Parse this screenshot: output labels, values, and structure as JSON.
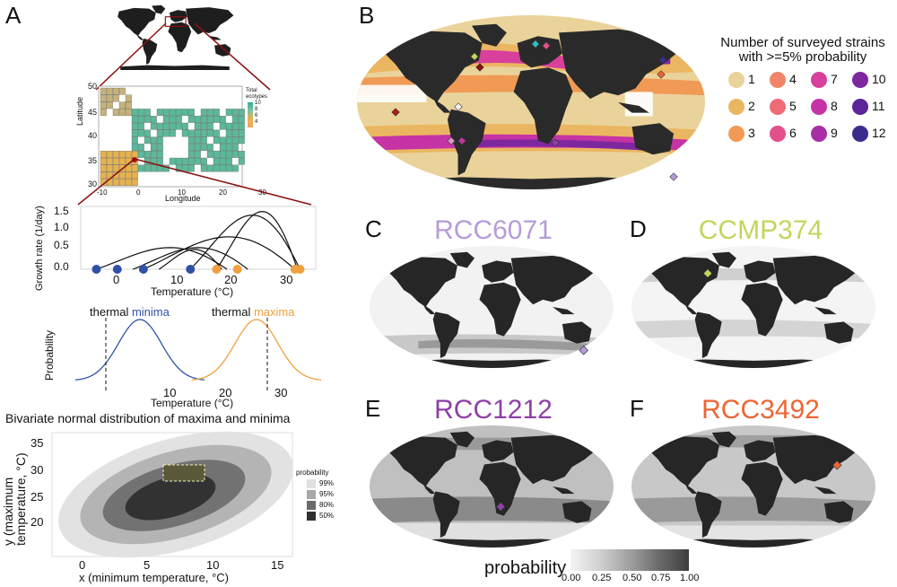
{
  "panels": {
    "A": "A",
    "B": "B",
    "C": "C",
    "D": "D",
    "E": "E",
    "F": "F"
  },
  "panelA": {
    "mini_map": {
      "xlabel": "Longitude",
      "ylabel": "Latitude",
      "x_ticks": [
        "-10",
        "0",
        "10",
        "20",
        "30"
      ],
      "y_ticks": [
        "50",
        "45",
        "40",
        "35",
        "30"
      ],
      "legend_title_line1": "Total",
      "legend_title_line2": "ecotypes",
      "legend_values": [
        "10",
        "8",
        "6",
        "4"
      ]
    },
    "growth": {
      "ylabel": "Growth rate (1/day)",
      "xlabel": "Temperature (°C)",
      "y_ticks": [
        "1.5",
        "1.0",
        "0.5",
        "0.0"
      ],
      "x_ticks": [
        "0",
        "10",
        "20",
        "30"
      ]
    },
    "probability": {
      "ylabel": "Probability",
      "xlabel": "Temperature (°C)",
      "x_ticks": [
        "10",
        "20",
        "30"
      ],
      "minima_prefix": "thermal ",
      "minima_word": "minima",
      "maxima_prefix": "thermal ",
      "maxima_word": "maxima"
    },
    "bivariate": {
      "title": "Bivariate normal distribution of maxima and minima",
      "xlabel": "x (minimum temperature, °C)",
      "ylabel_line1": "y (maximum",
      "ylabel_line2": "temperature, °C)",
      "x_ticks": [
        "0",
        "5",
        "10",
        "15"
      ],
      "y_ticks": [
        "35",
        "30",
        "25",
        "20"
      ],
      "legend_title": "probability",
      "legend_items": [
        "99%",
        "95%",
        "80%",
        "50%"
      ]
    }
  },
  "panelB": {
    "legend_title_line1": "Number of surveyed strains",
    "legend_title_line2": "with >=5% probability",
    "legend_items": [
      {
        "label": "1",
        "color": "#ead39b"
      },
      {
        "label": "2",
        "color": "#ebb661"
      },
      {
        "label": "3",
        "color": "#f09a55"
      },
      {
        "label": "4",
        "color": "#f08468"
      },
      {
        "label": "5",
        "color": "#ef6b76"
      },
      {
        "label": "6",
        "color": "#e34f8a"
      },
      {
        "label": "7",
        "color": "#d8409b"
      },
      {
        "label": "8",
        "color": "#c533a5"
      },
      {
        "label": "9",
        "color": "#a72ea5"
      },
      {
        "label": "10",
        "color": "#7e28a0"
      },
      {
        "label": "11",
        "color": "#5a2698"
      },
      {
        "label": "12",
        "color": "#3b2b8c"
      }
    ]
  },
  "strains": {
    "C": {
      "name": "RCC6071",
      "color": "#b79bd9"
    },
    "D": {
      "name": "CCMP374",
      "color": "#c6d45a"
    },
    "E": {
      "name": "RCC1212",
      "color": "#8e3fa6"
    },
    "F": {
      "name": "RCC3492",
      "color": "#ee6533"
    }
  },
  "colorbar": {
    "title": "probability",
    "ticks": [
      "0.00",
      "0.25",
      "0.50",
      "0.75",
      "1.00"
    ]
  }
}
